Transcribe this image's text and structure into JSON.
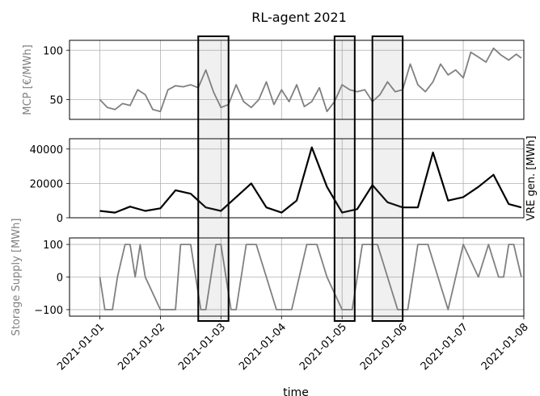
{
  "chart_data": {
    "type": "line",
    "title": "RL-agent 2021",
    "xlabel": "time",
    "x_ticks": [
      "2021-01-01",
      "2021-01-02",
      "2021-01-03",
      "2021-01-04",
      "2021-01-05",
      "2021-01-06",
      "2021-01-07",
      "2021-01-08"
    ],
    "x_range": [
      "2020-12-31 12:00",
      "2021-01-08 00:00"
    ],
    "grid": true,
    "highlight_windows": [
      {
        "start": "2021-01-02 15:00",
        "end": "2021-01-03 03:00"
      },
      {
        "start": "2021-01-04 21:00",
        "end": "2021-01-05 05:00"
      },
      {
        "start": "2021-01-05 12:00",
        "end": "2021-01-06 00:00"
      }
    ],
    "panels": [
      {
        "ylabel": "MCP [€/MWh]",
        "ylabel_side": "left",
        "ylim": [
          30,
          110
        ],
        "yticks": [
          50,
          100
        ],
        "color": "#808080",
        "series": [
          {
            "x": [
              "2021-01-01 00:00",
              "2021-01-01 03:00",
              "2021-01-01 06:00",
              "2021-01-01 09:00",
              "2021-01-01 12:00",
              "2021-01-01 15:00",
              "2021-01-01 18:00",
              "2021-01-01 21:00",
              "2021-01-02 00:00",
              "2021-01-02 03:00",
              "2021-01-02 06:00",
              "2021-01-02 09:00",
              "2021-01-02 12:00",
              "2021-01-02 15:00",
              "2021-01-02 18:00",
              "2021-01-02 21:00",
              "2021-01-03 00:00",
              "2021-01-03 03:00",
              "2021-01-03 06:00",
              "2021-01-03 09:00",
              "2021-01-03 12:00",
              "2021-01-03 15:00",
              "2021-01-03 18:00",
              "2021-01-03 21:00",
              "2021-01-04 00:00",
              "2021-01-04 03:00",
              "2021-01-04 06:00",
              "2021-01-04 09:00",
              "2021-01-04 12:00",
              "2021-01-04 15:00",
              "2021-01-04 18:00",
              "2021-01-04 21:00",
              "2021-01-05 00:00",
              "2021-01-05 03:00",
              "2021-01-05 06:00",
              "2021-01-05 09:00",
              "2021-01-05 12:00",
              "2021-01-05 15:00",
              "2021-01-05 18:00",
              "2021-01-05 21:00",
              "2021-01-06 00:00",
              "2021-01-06 03:00",
              "2021-01-06 06:00",
              "2021-01-06 09:00",
              "2021-01-06 12:00",
              "2021-01-06 15:00",
              "2021-01-06 18:00",
              "2021-01-06 21:00",
              "2021-01-07 00:00",
              "2021-01-07 03:00",
              "2021-01-07 06:00",
              "2021-01-07 09:00",
              "2021-01-07 12:00",
              "2021-01-07 15:00",
              "2021-01-07 18:00",
              "2021-01-07 21:00",
              "2021-01-07 23:00"
            ],
            "y": [
              50,
              42,
              40,
              46,
              44,
              60,
              55,
              40,
              38,
              60,
              64,
              63,
              65,
              62,
              80,
              58,
              42,
              45,
              65,
              48,
              42,
              50,
              68,
              45,
              60,
              48,
              65,
              43,
              48,
              62,
              38,
              48,
              65,
              60,
              58,
              60,
              48,
              55,
              68,
              58,
              60,
              86,
              65,
              58,
              68,
              86,
              75,
              80,
              72,
              98,
              93,
              88,
              102,
              95,
              90,
              96,
              92
            ]
          }
        ]
      },
      {
        "ylabel": "VRE gen. [MWh]",
        "ylabel_side": "right",
        "ylim": [
          0,
          46000
        ],
        "yticks": [
          0,
          20000,
          40000
        ],
        "color": "#000000",
        "series": [
          {
            "x": [
              "2021-01-01 00:00",
              "2021-01-01 06:00",
              "2021-01-01 12:00",
              "2021-01-01 18:00",
              "2021-01-02 00:00",
              "2021-01-02 06:00",
              "2021-01-02 12:00",
              "2021-01-02 18:00",
              "2021-01-03 00:00",
              "2021-01-03 06:00",
              "2021-01-03 12:00",
              "2021-01-03 18:00",
              "2021-01-04 00:00",
              "2021-01-04 06:00",
              "2021-01-04 12:00",
              "2021-01-04 18:00",
              "2021-01-05 00:00",
              "2021-01-05 06:00",
              "2021-01-05 12:00",
              "2021-01-05 18:00",
              "2021-01-06 00:00",
              "2021-01-06 06:00",
              "2021-01-06 12:00",
              "2021-01-06 18:00",
              "2021-01-07 00:00",
              "2021-01-07 06:00",
              "2021-01-07 12:00",
              "2021-01-07 18:00",
              "2021-01-07 23:00"
            ],
            "y": [
              4000,
              3000,
              6500,
              4000,
              5500,
              16000,
              14000,
              6000,
              4000,
              12000,
              20000,
              6000,
              3000,
              10000,
              41000,
              18000,
              3000,
              5000,
              19000,
              9000,
              6000,
              6000,
              38000,
              10000,
              12000,
              18000,
              25000,
              8000,
              6000
            ]
          }
        ]
      },
      {
        "ylabel": "Storage Supply [MWh]",
        "ylabel_side": "left",
        "ylim": [
          -120,
          120
        ],
        "yticks": [
          -100,
          0,
          100
        ],
        "color": "#808080",
        "series": [
          {
            "x": [
              "2021-01-01 00:00",
              "2021-01-01 02:00",
              "2021-01-01 05:00",
              "2021-01-01 07:00",
              "2021-01-01 10:00",
              "2021-01-01 12:00",
              "2021-01-01 14:00",
              "2021-01-01 16:00",
              "2021-01-01 18:00",
              "2021-01-02 00:00",
              "2021-01-02 06:00",
              "2021-01-02 08:00",
              "2021-01-02 12:00",
              "2021-01-02 14:00",
              "2021-01-02 16:00",
              "2021-01-02 18:00",
              "2021-01-02 22:00",
              "2021-01-03 00:00",
              "2021-01-03 04:00",
              "2021-01-03 06:00",
              "2021-01-03 10:00",
              "2021-01-03 14:00",
              "2021-01-03 18:00",
              "2021-01-03 22:00",
              "2021-01-04 04:00",
              "2021-01-04 10:00",
              "2021-01-04 14:00",
              "2021-01-04 18:00",
              "2021-01-05 00:00",
              "2021-01-05 04:00",
              "2021-01-05 08:00",
              "2021-01-05 14:00",
              "2021-01-05 18:00",
              "2021-01-05 22:00",
              "2021-01-06 02:00",
              "2021-01-06 06:00",
              "2021-01-06 10:00",
              "2021-01-06 14:00",
              "2021-01-06 18:00",
              "2021-01-07 00:00",
              "2021-01-07 06:00",
              "2021-01-07 10:00",
              "2021-01-07 14:00",
              "2021-01-07 16:00",
              "2021-01-07 18:00",
              "2021-01-07 20:00",
              "2021-01-07 23:00"
            ],
            "y": [
              0,
              -100,
              -100,
              0,
              100,
              100,
              0,
              100,
              0,
              -100,
              -100,
              100,
              100,
              0,
              -100,
              -100,
              100,
              100,
              -100,
              -100,
              100,
              100,
              0,
              -100,
              -100,
              100,
              100,
              0,
              -100,
              -100,
              100,
              100,
              0,
              -100,
              -100,
              100,
              100,
              0,
              -100,
              100,
              0,
              100,
              0,
              0,
              100,
              100,
              0
            ]
          }
        ]
      }
    ]
  }
}
